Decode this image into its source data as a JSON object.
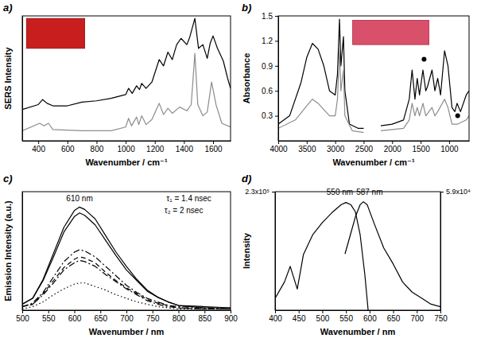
{
  "chart_data": [
    {
      "type": "line",
      "panel_label": "a)",
      "x_label": "Wavenumber / cm⁻¹",
      "y_label": "SERS Intensity",
      "xlim": [
        290,
        1720
      ],
      "xticks": [
        400,
        600,
        800,
        1000,
        1200,
        1400,
        1600
      ],
      "ylim": [
        0,
        100
      ],
      "tick_labels": "x",
      "series": [
        {
          "color": "#000000",
          "line_style": "solid",
          "x": [
            290,
            400,
            430,
            460,
            500,
            600,
            700,
            800,
            900,
            1000,
            1020,
            1045,
            1075,
            1095,
            1110,
            1140,
            1180,
            1230,
            1260,
            1290,
            1320,
            1350,
            1380,
            1420,
            1440,
            1475,
            1500,
            1530,
            1560,
            1580,
            1600,
            1630,
            1670,
            1700,
            1720
          ],
          "values": [
            25,
            29,
            33,
            30,
            28,
            28,
            31,
            32,
            34,
            37,
            42,
            38,
            44,
            41,
            46,
            42,
            47,
            65,
            60,
            71,
            65,
            77,
            82,
            77,
            83,
            98,
            74,
            77,
            66,
            78,
            84,
            74,
            64,
            50,
            42
          ]
        },
        {
          "color": "#8c8c8c",
          "line_style": "solid",
          "x": [
            290,
            410,
            440,
            470,
            500,
            700,
            900,
            1000,
            1020,
            1040,
            1075,
            1090,
            1110,
            1140,
            1180,
            1230,
            1260,
            1290,
            1320,
            1370,
            1420,
            1450,
            1475,
            1495,
            1530,
            1560,
            1590,
            1620,
            1660,
            1720
          ],
          "values": [
            8,
            14,
            12,
            14,
            9,
            8,
            8,
            11,
            18,
            12,
            19,
            13,
            20,
            13,
            17,
            30,
            21,
            26,
            22,
            27,
            24,
            29,
            70,
            29,
            20,
            23,
            47,
            29,
            14,
            11
          ]
        }
      ]
    },
    {
      "type": "line",
      "panel_label": "b)",
      "x_label": "Wavenumber / cm⁻¹",
      "y_label": "Absorbance",
      "xlim": [
        4000,
        650
      ],
      "xticks": [
        4000,
        3500,
        3000,
        2500,
        2000,
        1500,
        1000
      ],
      "ylim": [
        0,
        1.5
      ],
      "yticks": [
        0.3,
        0.6,
        0.9,
        1.2,
        1.5
      ],
      "series": [
        {
          "color": "#000000",
          "line_style": "solid",
          "x": [
            4000,
            3800,
            3600,
            3500,
            3400,
            3300,
            3200,
            3100,
            3000,
            2960,
            2925,
            2900,
            2855,
            2830,
            2750,
            2600,
            2500,
            2350,
            2200,
            2000,
            1800,
            1700,
            1650,
            1600,
            1560,
            1520,
            1460,
            1410,
            1380,
            1300,
            1250,
            1200,
            1150,
            1080,
            1020,
            950,
            900,
            860,
            800,
            700,
            650
          ],
          "values": [
            0.2,
            0.3,
            0.7,
            1.0,
            1.17,
            1.1,
            0.9,
            0.6,
            0.55,
            0.8,
            1.46,
            0.9,
            1.25,
            0.6,
            0.2,
            0.15,
            0.15,
            null,
            0.18,
            0.2,
            0.25,
            0.5,
            0.85,
            0.5,
            0.75,
            0.55,
            0.85,
            0.6,
            0.65,
            0.85,
            0.6,
            0.75,
            0.55,
            1.08,
            0.9,
            0.4,
            0.35,
            0.45,
            0.35,
            0.55,
            0.6
          ]
        },
        {
          "color": "#8c8c8c",
          "line_style": "solid",
          "x": [
            4000,
            3700,
            3500,
            3400,
            3300,
            3100,
            3000,
            2960,
            2925,
            2900,
            2855,
            2830,
            2700,
            2500,
            2350,
            2200,
            1800,
            1700,
            1650,
            1600,
            1560,
            1520,
            1460,
            1410,
            1300,
            1250,
            1200,
            1080,
            1020,
            950,
            850,
            700,
            650
          ],
          "values": [
            0.15,
            0.25,
            0.42,
            0.5,
            0.45,
            0.3,
            0.3,
            0.5,
            1.1,
            0.6,
            0.85,
            0.3,
            0.12,
            0.1,
            null,
            0.12,
            0.15,
            0.25,
            0.45,
            0.3,
            0.4,
            0.3,
            0.45,
            0.3,
            0.4,
            0.3,
            0.35,
            0.5,
            0.4,
            0.2,
            0.2,
            0.25,
            0.3
          ]
        },
        {
          "type": "scatter",
          "marker": "circle",
          "color": "#000000",
          "x": [
            1440,
            850
          ],
          "values": [
            0.98,
            0.3
          ]
        }
      ]
    },
    {
      "type": "line",
      "panel_label": "c)",
      "x_label": "Wavenumber / nm",
      "y_label": "Emission Intensity (a.u.)",
      "xlim": [
        500,
        900
      ],
      "xticks": [
        500,
        550,
        600,
        650,
        700,
        750,
        800,
        850,
        900
      ],
      "ylim": [
        0,
        100
      ],
      "tick_labels": "x",
      "x": [
        500,
        520,
        540,
        560,
        580,
        600,
        610,
        620,
        640,
        660,
        680,
        700,
        720,
        740,
        760,
        780,
        800,
        850,
        900
      ],
      "series": [
        {
          "color": "#000000",
          "line_style": "solid",
          "values": [
            5,
            10,
            26,
            48,
            70,
            84,
            87,
            85,
            77,
            63,
            49,
            37,
            26,
            17,
            11,
            7,
            4,
            3,
            2
          ]
        },
        {
          "color": "#000000",
          "line_style": "solid",
          "values": [
            5,
            10,
            25,
            45,
            66,
            79,
            82,
            80,
            72,
            59,
            46,
            34,
            25,
            16,
            11,
            7,
            4,
            2,
            2
          ]
        },
        {
          "color": "#000000",
          "line_style": "dashdot",
          "values": [
            3,
            6,
            15,
            28,
            41,
            49,
            51,
            50,
            45,
            37,
            29,
            21,
            15,
            10,
            7,
            4,
            3,
            2,
            1
          ]
        },
        {
          "color": "#000000",
          "line_style": "dashed",
          "values": [
            3,
            5,
            14,
            25,
            36,
            43,
            45,
            44,
            40,
            32,
            25,
            19,
            14,
            9,
            6,
            4,
            2,
            1,
            1
          ]
        },
        {
          "color": "#000000",
          "line_style": "dashdot",
          "values": [
            3,
            5,
            13,
            23,
            34,
            40,
            42,
            41,
            37,
            30,
            24,
            18,
            13,
            8,
            5,
            3,
            2,
            1,
            1
          ]
        },
        {
          "color": "#000000",
          "line_style": "dotted",
          "values": [
            1,
            3,
            7,
            13,
            18,
            22,
            23,
            23,
            20,
            17,
            13,
            10,
            7,
            5,
            3,
            2,
            1,
            1,
            1
          ]
        }
      ],
      "annotations": [
        {
          "text": "610 nm",
          "x": 610,
          "y": 92
        },
        {
          "text": "τ₁ = 1.4 nsec",
          "x": 820,
          "y": 92
        },
        {
          "text": "τ₂ = 2 nsec",
          "x": 810,
          "y": 82
        }
      ]
    },
    {
      "type": "line",
      "panel_label": "d)",
      "x_label": "Wavenumber / nm",
      "y_label": "Intensity",
      "xlim": [
        400,
        750
      ],
      "xticks": [
        400,
        450,
        500,
        550,
        600,
        650,
        700,
        750
      ],
      "ylim": [
        0,
        230000
      ],
      "yticks": [
        {
          "value": 230000,
          "label": "2.3x10⁵"
        }
      ],
      "y2lim": [
        0,
        59000
      ],
      "y2ticks": [
        {
          "value": 59000,
          "label": "5.9x10⁴"
        }
      ],
      "series": [
        {
          "color": "#000000",
          "line_style": "solid",
          "x": [
            400,
            420,
            432,
            447,
            460,
            480,
            500,
            520,
            540,
            550,
            560,
            570,
            580,
            590,
            597
          ],
          "values": [
            23000,
            55000,
            85000,
            41000,
            108000,
            147000,
            170000,
            189000,
            205000,
            209000,
            205000,
            191000,
            147000,
            69000,
            0
          ]
        },
        {
          "color": "#000000",
          "line_style": "solid",
          "axis": "y2",
          "x": [
            548,
            560,
            570,
            580,
            587,
            595,
            610,
            630,
            650,
            670,
            690,
            710,
            730,
            750
          ],
          "values": [
            28000,
            38000,
            46500,
            52500,
            54000,
            52500,
            43000,
            31000,
            23000,
            14000,
            9000,
            6000,
            3000,
            1700
          ]
        }
      ],
      "annotations": [
        {
          "text": "550 nm",
          "x": 550,
          "y": 224000
        },
        {
          "text": "587 nm",
          "x": 587,
          "y": 224000
        }
      ]
    }
  ]
}
